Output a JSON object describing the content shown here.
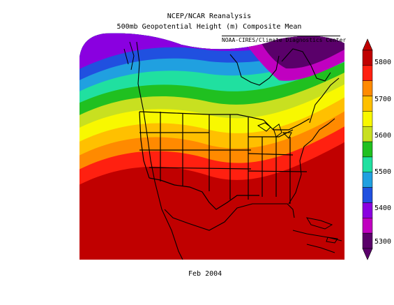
{
  "header": {
    "title": "NCEP/NCAR Reanalysis",
    "subtitle": "500mb Geopotential Height (m) Composite Mean",
    "credit": "NOAA-CIRES/Climate Diagnostics Center"
  },
  "footer": {
    "date": "Feb 2004"
  },
  "colorbar": {
    "labels": [
      "5800",
      "5700",
      "5600",
      "5500",
      "5400",
      "5300"
    ],
    "colors": [
      "#c00000",
      "#ff2010",
      "#ff8a00",
      "#ffc000",
      "#f8f800",
      "#c8e020",
      "#20c020",
      "#20e0a0",
      "#20a0e0",
      "#2050e0",
      "#8a00e0",
      "#c000c0",
      "#5a006a"
    ]
  },
  "map": {
    "field": "500mb geopotential height",
    "units": "m",
    "region": "North America"
  }
}
